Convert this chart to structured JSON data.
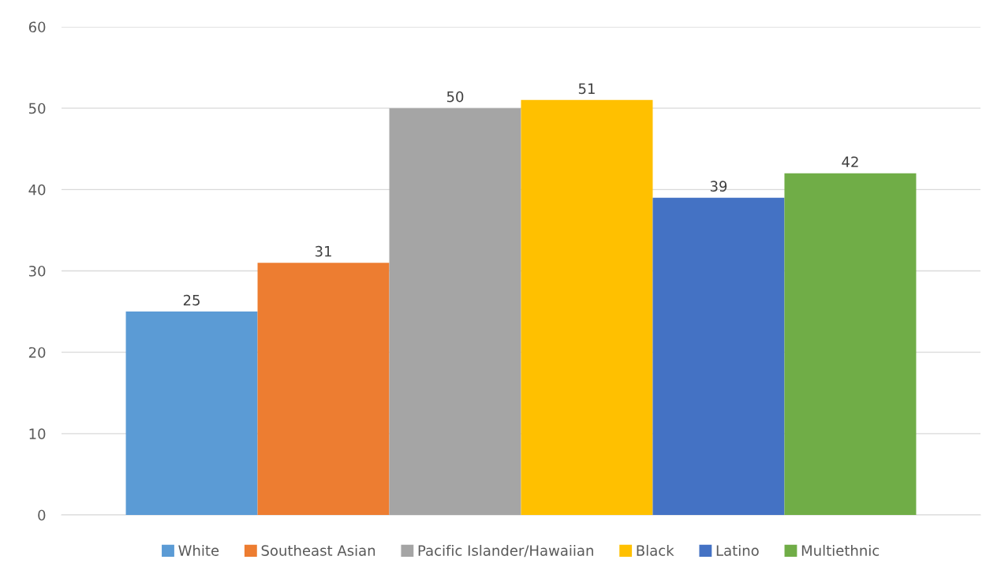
{
  "chart_data": {
    "type": "bar",
    "categories": [
      null
    ],
    "series": [
      {
        "name": "White",
        "color": "#5b9bd5",
        "values": [
          25
        ]
      },
      {
        "name": "Southeast Asian",
        "color": "#ed7d31",
        "values": [
          31
        ]
      },
      {
        "name": "Pacific Islander/Hawaiian",
        "color": "#a5a5a5",
        "values": [
          50
        ]
      },
      {
        "name": "Black",
        "color": "#ffc000",
        "values": [
          51
        ]
      },
      {
        "name": "Latino",
        "color": "#4472c4",
        "values": [
          39
        ]
      },
      {
        "name": "Multiethnic",
        "color": "#70ad47",
        "values": [
          42
        ]
      }
    ],
    "ylim": [
      0,
      60
    ],
    "yticks": [
      0,
      10,
      20,
      30,
      40,
      50,
      60
    ],
    "grid": "y",
    "legend": "bottom",
    "data_labels": true
  }
}
